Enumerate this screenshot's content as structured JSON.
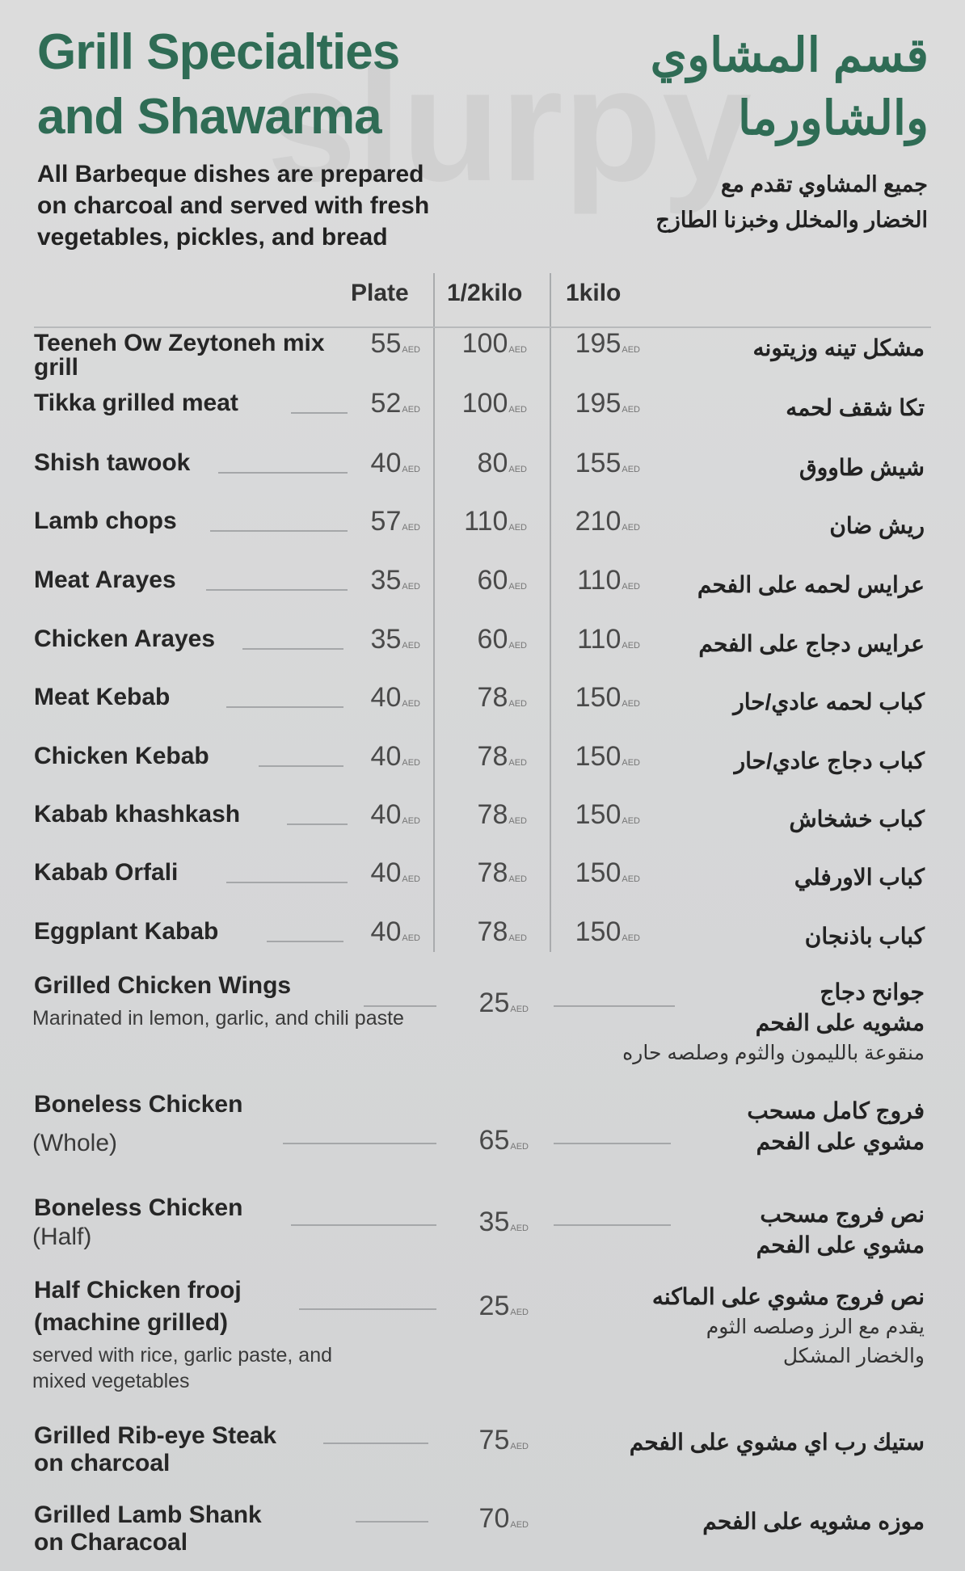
{
  "header": {
    "title_en": [
      "Grill Specialties",
      "and Shawarma"
    ],
    "title_ar": [
      "قسم المشاوي",
      "والشاورما"
    ],
    "subtitle_en": [
      "All Barbeque dishes are prepared",
      "on charcoal and served with fresh",
      "vegetables, pickles, and bread"
    ],
    "subtitle_ar": [
      "جميع المشاوي تقدم مع",
      "الخضار والمخلل وخبزنا الطازج"
    ]
  },
  "columns": [
    "Plate",
    "1/2kilo",
    "1kilo"
  ],
  "currency": "AED",
  "watermark": "slurpy",
  "grill_items": [
    {
      "name": "Teeneh Ow Zeytoneh mix grill",
      "ar": "مشكل تينه وزيتونه",
      "plate": "55",
      "half": "100",
      "kilo": "195"
    },
    {
      "name": "Tikka grilled meat",
      "ar": "تكا شقف لحمه",
      "plate": "52",
      "half": "100",
      "kilo": "195"
    },
    {
      "name": "Shish tawook",
      "ar": "شيش طاووق",
      "plate": "40",
      "half": "80",
      "kilo": "155"
    },
    {
      "name": "Lamb chops",
      "ar": "ريش ضان",
      "plate": "57",
      "half": "110",
      "kilo": "210"
    },
    {
      "name": "Meat Arayes",
      "ar": "عرايس لحمه على الفحم",
      "plate": "35",
      "half": "60",
      "kilo": "110"
    },
    {
      "name": "Chicken Arayes",
      "ar": "عرايس دجاج على الفحم",
      "plate": "35",
      "half": "60",
      "kilo": "110"
    },
    {
      "name": "Meat Kebab",
      "ar": "كباب لحمه عادي/حار",
      "plate": "40",
      "half": "78",
      "kilo": "150"
    },
    {
      "name": "Chicken Kebab",
      "ar": "كباب دجاج عادي/حار",
      "plate": "40",
      "half": "78",
      "kilo": "150"
    },
    {
      "name": "Kabab khashkash",
      "ar": "كباب خشخاش",
      "plate": "40",
      "half": "78",
      "kilo": "150"
    },
    {
      "name": "Kabab Orfali",
      "ar": "كباب الاورفلي",
      "plate": "40",
      "half": "78",
      "kilo": "150"
    },
    {
      "name": "Eggplant Kabab",
      "ar": "كباب باذنجان",
      "plate": "40",
      "half": "78",
      "kilo": "150"
    }
  ],
  "other_items": [
    {
      "name": [
        "Grilled Chicken Wings"
      ],
      "desc": [
        "Marinated in lemon, garlic, and chili paste"
      ],
      "price": "25",
      "ar": [
        "جوانح دجاج",
        "مشويه على الفحم"
      ],
      "ar_desc": [
        "منقوعة بالليمون والثوم وصلصه حاره"
      ]
    },
    {
      "name": [
        "Boneless Chicken"
      ],
      "desc": [
        "(Whole)"
      ],
      "price": "65",
      "ar": [
        "فروج كامل مسحب",
        "مشوي على الفحم"
      ],
      "ar_desc": []
    },
    {
      "name": [
        "Boneless Chicken"
      ],
      "desc": [
        "(Half)"
      ],
      "price": "35",
      "ar": [
        "نص فروج مسحب",
        "مشوي على الفحم"
      ],
      "ar_desc": []
    },
    {
      "name": [
        "Half Chicken frooj",
        "(machine grilled)"
      ],
      "desc": [
        "served with rice, garlic paste, and",
        "mixed vegetables"
      ],
      "price": "25",
      "ar": [
        "نص فروج مشوي على الماكنه"
      ],
      "ar_desc": [
        "يقدم مع الرز وصلصه الثوم",
        "والخضار المشكل"
      ]
    },
    {
      "name": [
        "Grilled Rib-eye Steak",
        "on charcoal"
      ],
      "desc": [],
      "price": "75",
      "ar": [
        "ستيك رب اي مشوي على الفحم"
      ],
      "ar_desc": []
    },
    {
      "name": [
        "Grilled Lamb Shank",
        "on Characoal"
      ],
      "desc": [],
      "price": "70",
      "ar": [
        "موزه مشويه على الفحم"
      ],
      "ar_desc": []
    }
  ]
}
